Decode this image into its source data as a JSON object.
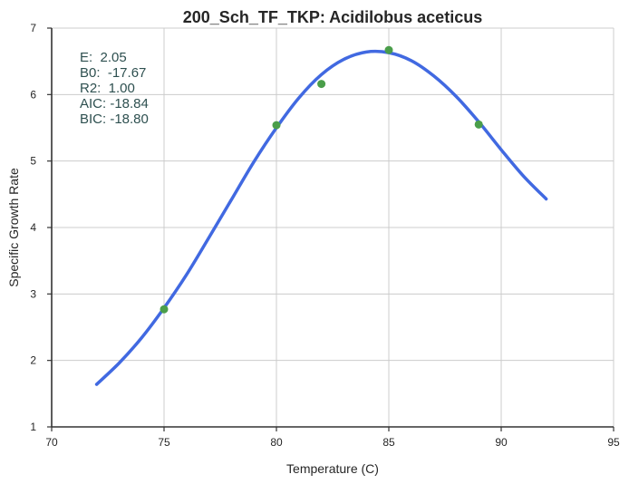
{
  "chart_data": {
    "type": "scatter",
    "title": "200_Sch_TF_TKP: Acidilobus aceticus",
    "xlabel": "Temperature (C)",
    "ylabel": "Specific Growth Rate",
    "xlim": [
      70,
      95
    ],
    "ylim": [
      1,
      7
    ],
    "xticks": [
      70,
      75,
      80,
      85,
      90,
      95
    ],
    "yticks": [
      1,
      2,
      3,
      4,
      5,
      6,
      7
    ],
    "grid": true,
    "series": [
      {
        "kind": "scatter",
        "color": "#4a9e4a",
        "x": [
          75,
          80,
          82,
          85,
          89
        ],
        "y": [
          2.77,
          5.54,
          6.16,
          6.67,
          5.55
        ]
      },
      {
        "kind": "line",
        "color": "#4169e1",
        "x": [
          72,
          73,
          74,
          75,
          76,
          77,
          78,
          79,
          80,
          81,
          82,
          83,
          84,
          85,
          86,
          87,
          88,
          89,
          90,
          91,
          92
        ],
        "y": [
          1.64,
          1.96,
          2.34,
          2.79,
          3.29,
          3.85,
          4.42,
          4.99,
          5.5,
          5.95,
          6.3,
          6.53,
          6.64,
          6.63,
          6.51,
          6.28,
          5.97,
          5.59,
          5.17,
          4.77,
          4.43
        ]
      }
    ],
    "annotations": [
      "E:  2.05",
      "B0:  -17.67",
      "R2:  1.00",
      "AIC: -18.84",
      "BIC: -18.80"
    ]
  }
}
